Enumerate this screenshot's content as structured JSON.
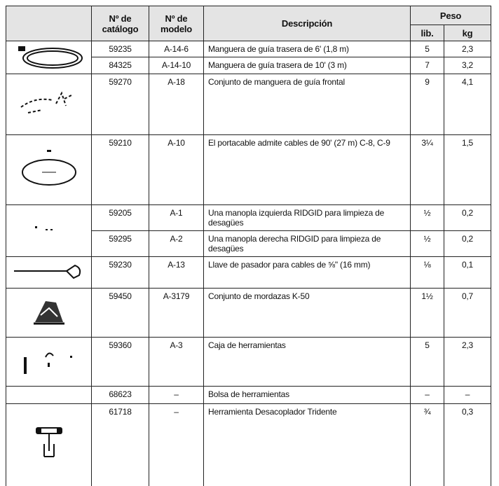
{
  "header": {
    "image": "",
    "catalog": "Nº de catálogo",
    "model": "Nº de modelo",
    "description": "Descripción",
    "weight": "Peso",
    "lb": "lib.",
    "kg": "kg"
  },
  "groups": [
    {
      "items": [
        [
          "59235",
          "A-14-6",
          "Manguera de guía trasera de 6' (1,8 m)",
          "5",
          "2,3"
        ],
        [
          "84325",
          "A-14-10",
          "Manguera de guía trasera de 10' (3 m)",
          "7",
          "3,2"
        ]
      ]
    },
    {
      "items": [
        [
          "59270",
          "A-18",
          "Conjunto de manguera de guía frontal",
          "9",
          "4,1"
        ]
      ]
    },
    {
      "items": [
        [
          "59210",
          "A-10",
          "El portacable admite cables de 90' (27 m) C-8, C-9",
          "3¼",
          "1,5"
        ]
      ]
    },
    {
      "items": [
        [
          "59205",
          "A-1",
          "Una manopla izquierda RIDGID para limpieza de desagües",
          "½",
          "0,2"
        ],
        [
          "59295",
          "A-2",
          "Una manopla derecha RIDGID para limpieza de desagües",
          "½",
          "0,2"
        ]
      ]
    },
    {
      "items": [
        [
          "59230",
          "A-13",
          "Llave de pasador para cables de ⅝\" (16 mm)",
          "⅛",
          "0,1"
        ]
      ]
    },
    {
      "items": [
        [
          "59450",
          "A-3179",
          "Conjunto de mordazas K-50",
          "1½",
          "0,7"
        ]
      ]
    },
    {
      "items": [
        [
          "59360",
          "A-3",
          "Caja de herramientas",
          "5",
          "2,3"
        ]
      ]
    },
    {
      "items": [
        [
          "68623",
          "–",
          "Bolsa de herramientas",
          "–",
          "–"
        ]
      ]
    },
    {
      "items": [
        [
          "61718",
          "–",
          "Herramienta Desacoplador Tridente",
          "¾",
          "0,3"
        ]
      ]
    }
  ]
}
